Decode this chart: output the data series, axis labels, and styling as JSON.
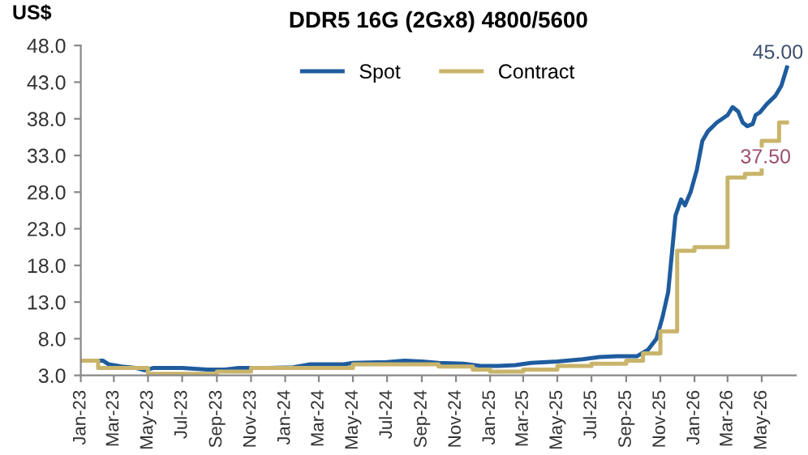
{
  "chart_data": {
    "type": "line",
    "title": "DDR5 16G (2Gx8) 4800/5600",
    "ylabel": "US$",
    "series": [
      {
        "name": "Spot",
        "color": "#1f5c9e",
        "x": [
          "2023-01-01",
          "2023-02-10",
          "2023-02-20",
          "2023-03-15",
          "2023-04-10",
          "2023-04-25",
          "2023-05-10",
          "2023-07-01",
          "2023-08-15",
          "2023-09-15",
          "2023-10-10",
          "2023-12-01",
          "2024-01-15",
          "2024-02-15",
          "2024-04-15",
          "2024-05-01",
          "2024-07-01",
          "2024-08-01",
          "2024-09-01",
          "2024-10-01",
          "2024-11-15",
          "2024-12-15",
          "2025-01-15",
          "2025-02-15",
          "2025-03-15",
          "2025-05-01",
          "2025-06-15",
          "2025-07-15",
          "2025-08-15",
          "2025-09-20",
          "2025-10-10",
          "2025-10-25",
          "2025-11-05",
          "2025-11-15",
          "2025-11-22",
          "2025-11-28",
          "2025-12-08",
          "2025-12-15",
          "2025-12-25",
          "2026-01-05",
          "2026-01-15",
          "2026-01-25",
          "2026-02-10",
          "2026-03-01",
          "2026-03-10",
          "2026-03-20",
          "2026-03-28",
          "2026-04-05",
          "2026-04-15",
          "2026-04-20",
          "2026-04-28",
          "2026-05-10",
          "2026-05-25",
          "2026-06-05",
          "2026-06-15"
        ],
        "values": [
          5.0,
          5.0,
          4.5,
          4.2,
          4.0,
          3.7,
          4.0,
          4.0,
          3.8,
          3.8,
          4.0,
          4.0,
          4.1,
          4.5,
          4.5,
          4.7,
          4.8,
          5.0,
          4.9,
          4.7,
          4.6,
          4.3,
          4.3,
          4.4,
          4.7,
          4.9,
          5.2,
          5.5,
          5.6,
          5.6,
          6.5,
          8.0,
          11.0,
          14.4,
          20.0,
          24.8,
          27.0,
          26.2,
          28.0,
          31.0,
          35.0,
          36.3,
          37.5,
          38.5,
          39.6,
          39.0,
          37.5,
          37.0,
          37.3,
          38.5,
          38.9,
          40.0,
          41.1,
          42.5,
          45.0
        ]
      },
      {
        "name": "Contract",
        "type": "step",
        "color": "#c9b46b",
        "x": [
          "2023-01-01",
          "2023-02-01",
          "2023-05-01",
          "2023-09-01",
          "2023-11-01",
          "2024-05-01",
          "2024-10-01",
          "2024-12-01",
          "2025-01-01",
          "2025-03-01",
          "2025-05-01",
          "2025-07-01",
          "2025-09-01",
          "2025-10-01",
          "2025-11-01",
          "2025-12-01",
          "2026-01-01",
          "2026-03-01",
          "2026-04-01",
          "2026-05-01",
          "2026-06-01",
          "2026-06-15"
        ],
        "values": [
          5.0,
          4.0,
          3.2,
          3.5,
          4.0,
          4.5,
          4.2,
          3.8,
          3.5,
          3.8,
          4.3,
          4.6,
          5.0,
          6.0,
          9.0,
          20.0,
          20.5,
          30.0,
          30.5,
          35.0,
          37.5,
          37.5
        ]
      }
    ],
    "annotations": [
      {
        "text": "45.00",
        "x": "2026-06-15",
        "y": 45.0
      },
      {
        "text": "37.50",
        "x": "2026-06-01",
        "y": 37.5
      }
    ],
    "xlim": [
      "2023-01-01",
      "2026-07-01"
    ],
    "xticks": [
      {
        "value": "2023-01-01",
        "label": "Jan-23"
      },
      {
        "value": "2023-03-01",
        "label": "Mar-23"
      },
      {
        "value": "2023-05-01",
        "label": "May-23"
      },
      {
        "value": "2023-07-01",
        "label": "Jul-23"
      },
      {
        "value": "2023-09-01",
        "label": "Sep-23"
      },
      {
        "value": "2023-11-01",
        "label": "Nov-23"
      },
      {
        "value": "2024-01-01",
        "label": "Jan-24"
      },
      {
        "value": "2024-03-01",
        "label": "Mar-24"
      },
      {
        "value": "2024-05-01",
        "label": "May-24"
      },
      {
        "value": "2024-07-01",
        "label": "Jul-24"
      },
      {
        "value": "2024-09-01",
        "label": "Sep-24"
      },
      {
        "value": "2024-11-01",
        "label": "Nov-24"
      },
      {
        "value": "2025-01-01",
        "label": "Jan-25"
      },
      {
        "value": "2025-03-01",
        "label": "Mar-25"
      },
      {
        "value": "2025-05-01",
        "label": "May-25"
      },
      {
        "value": "2025-07-01",
        "label": "Jul-25"
      },
      {
        "value": "2025-09-01",
        "label": "Sep-25"
      },
      {
        "value": "2025-11-01",
        "label": "Nov-25"
      },
      {
        "value": "2026-01-01",
        "label": "Jan-26"
      },
      {
        "value": "2026-03-01",
        "label": "Mar-26"
      },
      {
        "value": "2026-05-01",
        "label": "May-26"
      }
    ],
    "ylim": [
      3.0,
      48.0
    ],
    "yticks": [
      {
        "value": 3,
        "label": "3.0"
      },
      {
        "value": 8,
        "label": "8.0"
      },
      {
        "value": 13,
        "label": "13.0"
      },
      {
        "value": 18,
        "label": "18.0"
      },
      {
        "value": 23,
        "label": "23.0"
      },
      {
        "value": 28,
        "label": "28.0"
      },
      {
        "value": 33,
        "label": "33.0"
      },
      {
        "value": 38,
        "label": "38.0"
      },
      {
        "value": 43,
        "label": "43.0"
      },
      {
        "value": 48,
        "label": "48.0"
      }
    ],
    "grid": false,
    "legend": "top"
  }
}
